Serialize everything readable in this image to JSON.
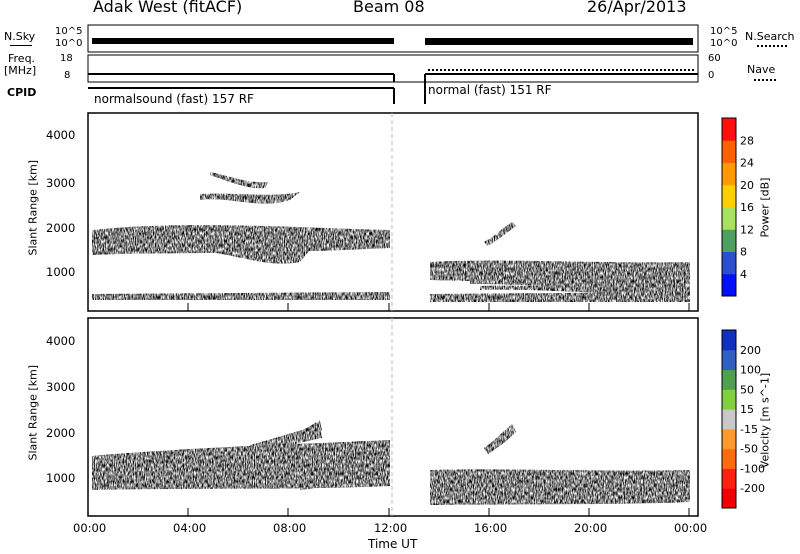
{
  "header": {
    "station": "Adak West (fitACF)",
    "beam": "Beam 08",
    "date": "26/Apr/2013"
  },
  "top_panels": {
    "nsky_label": "N.Sky",
    "nsky_ticks": [
      "10^5",
      "10^0"
    ],
    "nsearch_label": "N.Search",
    "nsearch_ticks": [
      "10^5",
      "10^0"
    ],
    "freq_label_1": "Freq.",
    "freq_label_2": "[MHz]",
    "freq_ticks": [
      "18",
      "8"
    ],
    "nave_label": "Nave",
    "nave_ticks": [
      "60",
      "0"
    ],
    "cpid_label": "CPID",
    "cpid_segments": [
      "normalsound (fast) 157 RF",
      "normal (fast) 151 RF"
    ]
  },
  "chart_data": [
    {
      "type": "heatmap",
      "title": "",
      "xlabel": "Time UT",
      "ylabel": "Slant Range [km]",
      "xlim_hours": [
        0,
        24
      ],
      "ylim_km": [
        180,
        4600
      ],
      "x_ticks": [
        "00:00",
        "04:00",
        "08:00",
        "12:00",
        "16:00",
        "20:00",
        "00:00"
      ],
      "y_ticks": [
        "1000",
        "2000",
        "3000",
        "4000"
      ],
      "data_gap_hours": [
        12.0,
        13.1
      ],
      "colorbar": {
        "label": "Power [dB]",
        "ticks": [
          "28",
          "24",
          "20",
          "16",
          "12",
          "8",
          "4"
        ],
        "colors": [
          "#ff1010",
          "#ff6000",
          "#ff9a00",
          "#ffd000",
          "#a8e060",
          "#4ea060",
          "#2a4fd0",
          "#0010ff"
        ]
      }
    },
    {
      "type": "heatmap",
      "title": "",
      "xlabel": "Time UT",
      "ylabel": "Slant Range [km]",
      "xlim_hours": [
        0,
        24
      ],
      "ylim_km": [
        180,
        4600
      ],
      "x_ticks": [
        "00:00",
        "04:00",
        "08:00",
        "12:00",
        "16:00",
        "20:00",
        "00:00"
      ],
      "y_ticks": [
        "1000",
        "2000",
        "3000",
        "4000"
      ],
      "data_gap_hours": [
        12.0,
        13.1
      ],
      "colorbar": {
        "label": "Velocity [m s^-1]",
        "ticks": [
          "200",
          "100",
          "50",
          "15",
          "-15",
          "-50",
          "-100",
          "-200"
        ],
        "colors": [
          "#1030c0",
          "#3060c0",
          "#50a050",
          "#80d040",
          "#c8c8c8",
          "#ff9a30",
          "#ff6a10",
          "#ff2010",
          "#f00000"
        ]
      }
    }
  ],
  "colors": {
    "band_red": "#e01010",
    "band_orange": "#ff7a00",
    "band_green": "#4ea060",
    "band_blue": "#2a4fd0",
    "ground_gray": "#c4c4c4"
  }
}
